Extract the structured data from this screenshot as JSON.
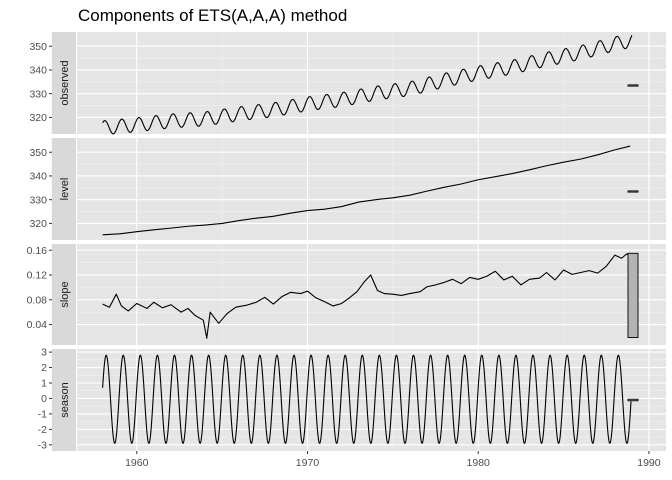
{
  "chart_data": {
    "type": "line",
    "title": "Components of ETS(A,A,A) method",
    "x": {
      "range": [
        1956.5,
        1991.0
      ],
      "ticks": [
        1960,
        1970,
        1980,
        1990
      ],
      "tick_labels": [
        "1960",
        "1970",
        "1980",
        "1990"
      ]
    },
    "grid": true,
    "legend": "none",
    "colors": {
      "panel_background": "#e5e5e5",
      "strip_background": "#d9d9d9",
      "grid_major": "#ffffff",
      "line": "#000000",
      "range_bar": "#b3b3b3"
    },
    "panels": [
      {
        "id": "observed",
        "strip_label": "observed",
        "ylim": [
          313,
          356
        ],
        "yticks": [
          320,
          330,
          340,
          350
        ],
        "ytick_labels": [
          "320",
          "330",
          "340",
          "350"
        ],
        "series": {
          "x_start": 1958.0,
          "x_step": 1,
          "months_per_step": 12,
          "trend_points": [
            [
              1958,
              315.6
            ],
            [
              1960,
              316.9
            ],
            [
              1962,
              318.5
            ],
            [
              1964,
              319.4
            ],
            [
              1966,
              321.5
            ],
            [
              1968,
              323.2
            ],
            [
              1970,
              325.7
            ],
            [
              1972,
              327.5
            ],
            [
              1974,
              330.2
            ],
            [
              1976,
              332.1
            ],
            [
              1978,
              335.6
            ],
            [
              1980,
              338.7
            ],
            [
              1982,
              341.2
            ],
            [
              1984,
              344.5
            ],
            [
              1986,
              347.3
            ],
            [
              1988,
              351.0
            ],
            [
              1989,
              352.5
            ]
          ],
          "seasonal_amplitude": 3.0
        },
        "range_bar": [
          333.5,
          333.7
        ]
      },
      {
        "id": "level",
        "strip_label": "level",
        "ylim": [
          313,
          356
        ],
        "yticks": [
          320,
          330,
          340,
          350
        ],
        "ytick_labels": [
          "320",
          "330",
          "340",
          "350"
        ],
        "points": [
          [
            1958.0,
            315.2
          ],
          [
            1959.0,
            315.6
          ],
          [
            1960.0,
            316.5
          ],
          [
            1961.0,
            317.3
          ],
          [
            1962.0,
            318.0
          ],
          [
            1963.0,
            318.8
          ],
          [
            1964.0,
            319.3
          ],
          [
            1965.0,
            320.0
          ],
          [
            1966.0,
            321.2
          ],
          [
            1967.0,
            322.2
          ],
          [
            1968.0,
            323.0
          ],
          [
            1969.0,
            324.3
          ],
          [
            1970.0,
            325.4
          ],
          [
            1971.0,
            326.0
          ],
          [
            1972.0,
            327.1
          ],
          [
            1973.0,
            329.0
          ],
          [
            1974.0,
            330.0
          ],
          [
            1975.0,
            330.8
          ],
          [
            1976.0,
            331.9
          ],
          [
            1977.0,
            333.6
          ],
          [
            1978.0,
            335.2
          ],
          [
            1979.0,
            336.6
          ],
          [
            1980.0,
            338.4
          ],
          [
            1981.0,
            339.7
          ],
          [
            1982.0,
            341.0
          ],
          [
            1983.0,
            342.6
          ],
          [
            1984.0,
            344.3
          ],
          [
            1985.0,
            345.8
          ],
          [
            1986.0,
            347.1
          ],
          [
            1987.0,
            348.9
          ],
          [
            1988.0,
            351.0
          ],
          [
            1988.9,
            352.6
          ]
        ],
        "range_bar": [
          333.5,
          333.7
        ]
      },
      {
        "id": "slope",
        "strip_label": "slope",
        "ylim": [
          0.007,
          0.17
        ],
        "yticks": [
          0.04,
          0.08,
          0.12,
          0.16
        ],
        "ytick_labels": [
          "0.04",
          "0.08",
          "0.12",
          "0.16"
        ],
        "points": [
          [
            1958.0,
            0.073
          ],
          [
            1958.4,
            0.068
          ],
          [
            1958.8,
            0.089
          ],
          [
            1959.1,
            0.07
          ],
          [
            1959.5,
            0.062
          ],
          [
            1960.0,
            0.074
          ],
          [
            1960.6,
            0.066
          ],
          [
            1961.0,
            0.076
          ],
          [
            1961.5,
            0.067
          ],
          [
            1962.0,
            0.072
          ],
          [
            1962.6,
            0.06
          ],
          [
            1963.0,
            0.066
          ],
          [
            1963.4,
            0.055
          ],
          [
            1963.9,
            0.047
          ],
          [
            1964.1,
            0.018
          ],
          [
            1964.3,
            0.06
          ],
          [
            1964.8,
            0.042
          ],
          [
            1965.3,
            0.058
          ],
          [
            1965.8,
            0.068
          ],
          [
            1966.4,
            0.071
          ],
          [
            1967.0,
            0.076
          ],
          [
            1967.5,
            0.084
          ],
          [
            1968.0,
            0.073
          ],
          [
            1968.5,
            0.085
          ],
          [
            1969.0,
            0.092
          ],
          [
            1969.6,
            0.09
          ],
          [
            1970.0,
            0.094
          ],
          [
            1970.5,
            0.083
          ],
          [
            1971.0,
            0.077
          ],
          [
            1971.5,
            0.07
          ],
          [
            1972.0,
            0.074
          ],
          [
            1972.4,
            0.082
          ],
          [
            1972.9,
            0.093
          ],
          [
            1973.3,
            0.108
          ],
          [
            1973.7,
            0.12
          ],
          [
            1974.1,
            0.095
          ],
          [
            1974.5,
            0.09
          ],
          [
            1975.0,
            0.089
          ],
          [
            1975.5,
            0.087
          ],
          [
            1976.0,
            0.09
          ],
          [
            1976.6,
            0.093
          ],
          [
            1977.0,
            0.101
          ],
          [
            1977.5,
            0.104
          ],
          [
            1978.0,
            0.108
          ],
          [
            1978.5,
            0.113
          ],
          [
            1979.0,
            0.106
          ],
          [
            1979.5,
            0.116
          ],
          [
            1980.0,
            0.113
          ],
          [
            1980.5,
            0.118
          ],
          [
            1981.0,
            0.126
          ],
          [
            1981.5,
            0.112
          ],
          [
            1982.0,
            0.118
          ],
          [
            1982.5,
            0.104
          ],
          [
            1983.0,
            0.113
          ],
          [
            1983.6,
            0.115
          ],
          [
            1984.0,
            0.124
          ],
          [
            1984.5,
            0.112
          ],
          [
            1985.0,
            0.128
          ],
          [
            1985.5,
            0.121
          ],
          [
            1986.0,
            0.124
          ],
          [
            1986.5,
            0.127
          ],
          [
            1987.0,
            0.123
          ],
          [
            1987.5,
            0.134
          ],
          [
            1988.0,
            0.152
          ],
          [
            1988.4,
            0.147
          ],
          [
            1988.7,
            0.154
          ],
          [
            1988.9,
            0.151
          ]
        ],
        "range_bar": [
          0.019,
          0.155
        ]
      },
      {
        "id": "season",
        "strip_label": "season",
        "ylim": [
          -3.4,
          3.2
        ],
        "yticks": [
          -3,
          -2,
          -1,
          0,
          1,
          2,
          3
        ],
        "ytick_labels": [
          "-3",
          "-2",
          "-1",
          "0",
          "1",
          "2",
          "3"
        ],
        "series": {
          "x_start": 1958.0,
          "x_end": 1988.95,
          "cycles_per_x": 1,
          "amplitude_peak": 2.8,
          "amplitude_trough": -2.9,
          "start_value": 0.7
        },
        "range_bar": [
          -0.15,
          -0.05
        ]
      }
    ]
  }
}
